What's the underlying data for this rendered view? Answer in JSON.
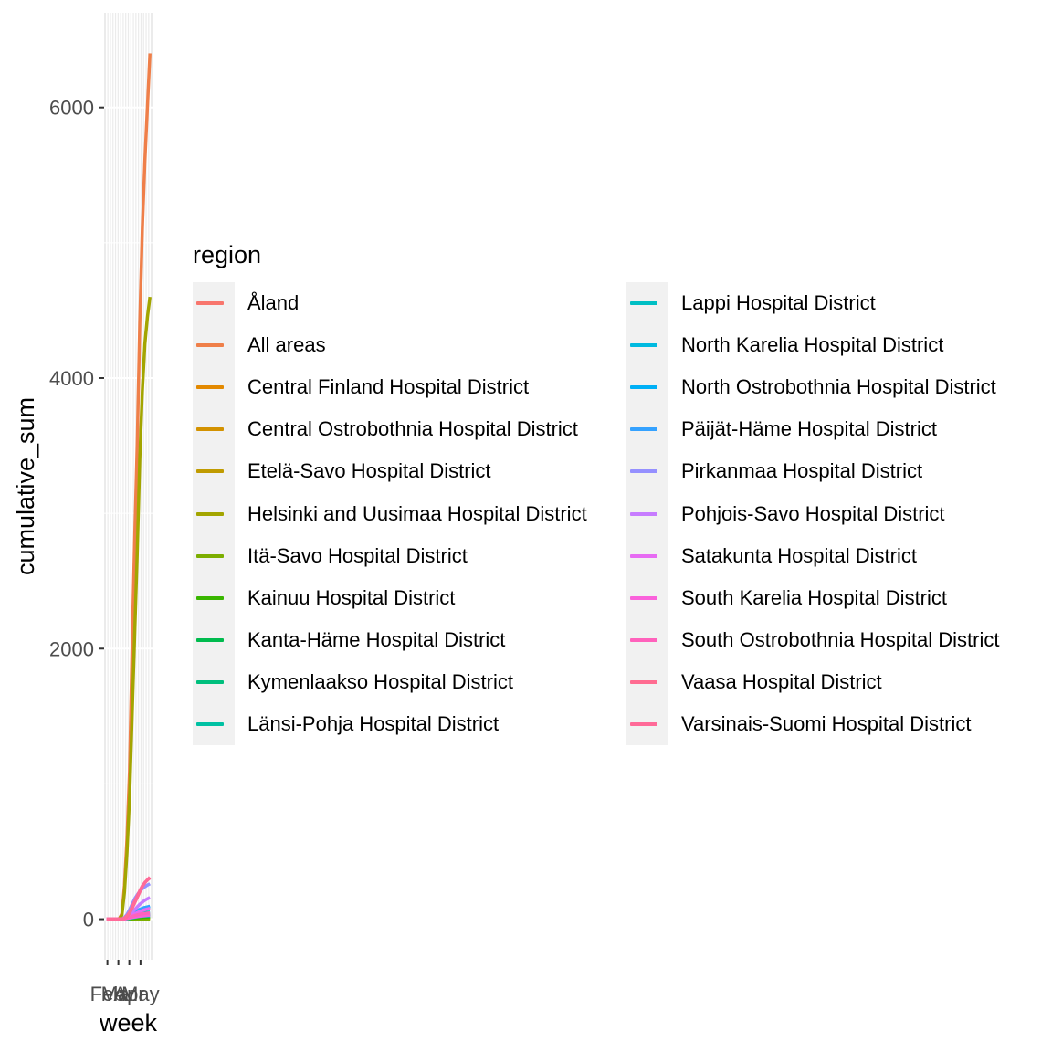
{
  "chart_data": {
    "type": "line",
    "title": "",
    "xlabel": "week",
    "ylabel": "cumulative_sum",
    "x_tick_labels": [
      "Feb",
      "Mar",
      "Apr",
      "May"
    ],
    "y_tick_labels": [
      "0",
      "2000",
      "4000",
      "6000"
    ],
    "ylim": [
      -300,
      6700
    ],
    "xlim_weeks": [
      4,
      23
    ],
    "grid": true,
    "legend_title": "region",
    "legend_placement": "right",
    "x_weeks": [
      5,
      6,
      7,
      8,
      9,
      10,
      11,
      12,
      13,
      14,
      15,
      16,
      17,
      18,
      19,
      20,
      21,
      22
    ],
    "series": [
      {
        "name": "Åland",
        "color": "#F8766D",
        "values": [
          0,
          0,
          0,
          0,
          0,
          0,
          1,
          3,
          5,
          8,
          10,
          11,
          11,
          12,
          12,
          12,
          12,
          12
        ]
      },
      {
        "name": "All areas",
        "color": "#EF7F49",
        "values": [
          1,
          1,
          1,
          1,
          1,
          5,
          40,
          250,
          600,
          1100,
          2000,
          2800,
          3500,
          4400,
          5100,
          5600,
          6000,
          6400
        ]
      },
      {
        "name": "Central Finland Hospital District",
        "color": "#E38900",
        "values": [
          0,
          0,
          0,
          0,
          0,
          0,
          2,
          8,
          15,
          25,
          35,
          45,
          55,
          62,
          68,
          72,
          75,
          78
        ]
      },
      {
        "name": "Central Ostrobothnia Hospital District",
        "color": "#D39200",
        "values": [
          0,
          0,
          0,
          0,
          0,
          0,
          0,
          1,
          2,
          3,
          4,
          5,
          5,
          6,
          6,
          6,
          6,
          6
        ]
      },
      {
        "name": "Etelä-Savo Hospital District",
        "color": "#C09B00",
        "values": [
          0,
          0,
          0,
          0,
          0,
          0,
          0,
          2,
          4,
          6,
          8,
          10,
          11,
          12,
          12,
          13,
          13,
          13
        ]
      },
      {
        "name": "Helsinki and Uusimaa Hospital District",
        "color": "#A3A500",
        "values": [
          0,
          0,
          0,
          0,
          0,
          3,
          30,
          200,
          500,
          900,
          1500,
          2100,
          2700,
          3400,
          3900,
          4250,
          4450,
          4600
        ]
      },
      {
        "name": "Itä-Savo Hospital District",
        "color": "#7CAE00",
        "values": [
          0,
          0,
          0,
          0,
          0,
          0,
          0,
          0,
          1,
          1,
          2,
          2,
          2,
          2,
          2,
          2,
          2,
          2
        ]
      },
      {
        "name": "Kainuu Hospital District",
        "color": "#39B600",
        "values": [
          0,
          0,
          0,
          0,
          0,
          0,
          0,
          1,
          2,
          4,
          6,
          8,
          10,
          12,
          14,
          15,
          16,
          17
        ]
      },
      {
        "name": "Kanta-Häme Hospital District",
        "color": "#00BB4E",
        "values": [
          0,
          0,
          0,
          0,
          0,
          0,
          0,
          3,
          6,
          10,
          14,
          18,
          22,
          26,
          28,
          30,
          32,
          34
        ]
      },
      {
        "name": "Kymenlaakso Hospital District",
        "color": "#00BF7D",
        "values": [
          0,
          0,
          0,
          0,
          0,
          0,
          0,
          2,
          5,
          10,
          15,
          20,
          25,
          28,
          30,
          32,
          34,
          36
        ]
      },
      {
        "name": "Länsi-Pohja Hospital District",
        "color": "#00C1A3",
        "values": [
          0,
          0,
          0,
          0,
          0,
          0,
          0,
          1,
          3,
          6,
          10,
          14,
          18,
          22,
          26,
          28,
          30,
          32
        ]
      },
      {
        "name": "Lappi Hospital District",
        "color": "#00BFC4",
        "values": [
          0,
          0,
          0,
          0,
          0,
          0,
          1,
          4,
          10,
          18,
          25,
          30,
          35,
          40,
          45,
          48,
          50,
          52
        ]
      },
      {
        "name": "North Karelia Hospital District",
        "color": "#00BAE0",
        "values": [
          0,
          0,
          0,
          0,
          0,
          0,
          0,
          2,
          4,
          8,
          12,
          15,
          18,
          20,
          22,
          23,
          24,
          25
        ]
      },
      {
        "name": "North Ostrobothnia Hospital District",
        "color": "#00B0F6",
        "values": [
          0,
          0,
          0,
          0,
          0,
          0,
          1,
          5,
          12,
          22,
          35,
          50,
          62,
          72,
          80,
          86,
          90,
          94
        ]
      },
      {
        "name": "Päijät-Häme Hospital District",
        "color": "#35A2FF",
        "values": [
          0,
          0,
          0,
          0,
          0,
          0,
          1,
          6,
          14,
          25,
          38,
          50,
          62,
          72,
          80,
          86,
          90,
          95
        ]
      },
      {
        "name": "Pirkanmaa Hospital District",
        "color": "#9590FF",
        "values": [
          0,
          0,
          0,
          0,
          0,
          0,
          2,
          12,
          35,
          70,
          110,
          150,
          180,
          205,
          225,
          240,
          252,
          262
        ]
      },
      {
        "name": "Pohjois-Savo Hospital District",
        "color": "#C77CFF",
        "values": [
          0,
          0,
          0,
          0,
          0,
          0,
          1,
          6,
          15,
          30,
          50,
          70,
          90,
          110,
          125,
          140,
          150,
          160
        ]
      },
      {
        "name": "Satakunta Hospital District",
        "color": "#E76BF3",
        "values": [
          0,
          0,
          0,
          0,
          0,
          0,
          1,
          4,
          10,
          18,
          28,
          38,
          48,
          56,
          64,
          70,
          75,
          80
        ]
      },
      {
        "name": "South Karelia Hospital District",
        "color": "#FA62DB",
        "values": [
          0,
          0,
          0,
          0,
          0,
          0,
          0,
          2,
          5,
          9,
          13,
          16,
          19,
          22,
          24,
          26,
          28,
          30
        ]
      },
      {
        "name": "South Ostrobothnia Hospital District",
        "color": "#FF62BC",
        "values": [
          0,
          0,
          0,
          0,
          0,
          0,
          0,
          2,
          6,
          12,
          20,
          26,
          32,
          36,
          40,
          42,
          44,
          46
        ]
      },
      {
        "name": "Vaasa Hospital District",
        "color": "#FF6C91",
        "values": [
          0,
          0,
          0,
          0,
          0,
          0,
          1,
          6,
          20,
          45,
          80,
          120,
          160,
          200,
          240,
          270,
          290,
          305
        ]
      },
      {
        "name": "Varsinais-Suomi Hospital District",
        "color": "#FF6A98",
        "values": [
          0,
          0,
          0,
          0,
          0,
          0,
          1,
          8,
          25,
          50,
          90,
          130,
          170,
          210,
          245,
          270,
          290,
          310
        ]
      }
    ]
  }
}
